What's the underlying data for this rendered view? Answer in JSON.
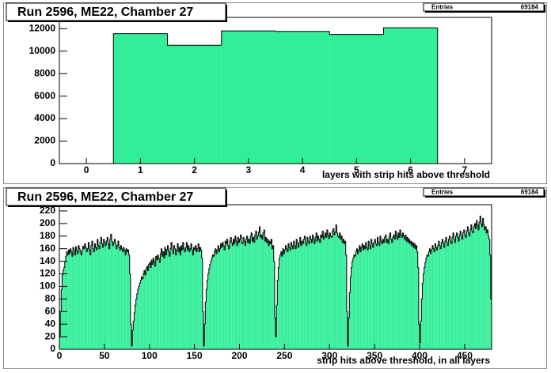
{
  "chart_data": [
    {
      "type": "histogram",
      "title": "Run 2596, ME22, Chamber 27",
      "stats_label": "Entries",
      "stats_value": 69184,
      "xlabel": "layers with strip hits above threshold",
      "color": "#33ee99",
      "bins": [
        -0.5,
        0.5,
        1.5,
        2.5,
        3.5,
        4.5,
        5.5,
        6.5,
        7.5
      ],
      "values": [
        0,
        11550,
        10520,
        11800,
        11750,
        11480,
        12080,
        0
      ],
      "xlim": [
        -0.5,
        7.5
      ],
      "ylim": [
        0,
        13000
      ],
      "xticks": [
        0,
        1,
        2,
        3,
        4,
        5,
        6,
        7
      ],
      "yticks": [
        0,
        2000,
        4000,
        6000,
        8000,
        10000,
        12000
      ]
    },
    {
      "type": "histogram",
      "title": "Run 2596, ME22, Chamber 27",
      "stats_label": "Entries",
      "stats_value": 69184,
      "xlabel": "strip hits above threshold, in all layers",
      "color": "#33ee99",
      "bins": [
        0,
        1,
        2,
        3,
        4,
        5,
        6,
        7,
        8,
        9,
        10,
        11,
        12,
        13,
        14,
        15,
        16,
        17,
        18,
        19,
        20,
        21,
        22,
        23,
        24,
        25,
        26,
        27,
        28,
        29,
        30,
        31,
        32,
        33,
        34,
        35,
        36,
        37,
        38,
        39,
        40,
        41,
        42,
        43,
        44,
        45,
        46,
        47,
        48,
        49,
        50,
        51,
        52,
        53,
        54,
        55,
        56,
        57,
        58,
        59,
        60,
        61,
        62,
        63,
        64,
        65,
        66,
        67,
        68,
        69,
        70,
        71,
        72,
        73,
        74,
        75,
        76,
        77,
        78,
        79,
        80,
        81,
        82,
        83,
        84,
        85,
        86,
        87,
        88,
        89,
        90,
        91,
        92,
        93,
        94,
        95,
        96,
        97,
        98,
        99,
        100,
        101,
        102,
        103,
        104,
        105,
        106,
        107,
        108,
        109,
        110,
        111,
        112,
        113,
        114,
        115,
        116,
        117,
        118,
        119,
        120,
        121,
        122,
        123,
        124,
        125,
        126,
        127,
        128,
        129,
        130,
        131,
        132,
        133,
        134,
        135,
        136,
        137,
        138,
        139,
        140,
        141,
        142,
        143,
        144,
        145,
        146,
        147,
        148,
        149,
        150,
        151,
        152,
        153,
        154,
        155,
        156,
        157,
        158,
        159,
        160,
        161,
        162,
        163,
        164,
        165,
        166,
        167,
        168,
        169,
        170,
        171,
        172,
        173,
        174,
        175,
        176,
        177,
        178,
        179,
        180,
        181,
        182,
        183,
        184,
        185,
        186,
        187,
        188,
        189,
        190,
        191,
        192,
        193,
        194,
        195,
        196,
        197,
        198,
        199,
        200,
        201,
        202,
        203,
        204,
        205,
        206,
        207,
        208,
        209,
        210,
        211,
        212,
        213,
        214,
        215,
        216,
        217,
        218,
        219,
        220,
        221,
        222,
        223,
        224,
        225,
        226,
        227,
        228,
        229,
        230,
        231,
        232,
        233,
        234,
        235,
        236,
        237,
        238,
        239,
        240,
        241,
        242,
        243,
        244,
        245,
        246,
        247,
        248,
        249,
        250,
        251,
        252,
        253,
        254,
        255,
        256,
        257,
        258,
        259,
        260,
        261,
        262,
        263,
        264,
        265,
        266,
        267,
        268,
        269,
        270,
        271,
        272,
        273,
        274,
        275,
        276,
        277,
        278,
        279,
        280,
        281,
        282,
        283,
        284,
        285,
        286,
        287,
        288,
        289,
        290,
        291,
        292,
        293,
        294,
        295,
        296,
        297,
        298,
        299,
        300,
        301,
        302,
        303,
        304,
        305,
        306,
        307,
        308,
        309,
        310,
        311,
        312,
        313,
        314,
        315,
        316,
        317,
        318,
        319,
        320,
        321,
        322,
        323,
        324,
        325,
        326,
        327,
        328,
        329,
        330,
        331,
        332,
        333,
        334,
        335,
        336,
        337,
        338,
        339,
        340,
        341,
        342,
        343,
        344,
        345,
        346,
        347,
        348,
        349,
        350,
        351,
        352,
        353,
        354,
        355,
        356,
        357,
        358,
        359,
        360,
        361,
        362,
        363,
        364,
        365,
        366,
        367,
        368,
        369,
        370,
        371,
        372,
        373,
        374,
        375,
        376,
        377,
        378,
        379,
        380,
        381,
        382,
        383,
        384,
        385,
        386,
        387,
        388,
        389,
        390,
        391,
        392,
        393,
        394,
        395,
        396,
        397,
        398,
        399,
        400,
        401,
        402,
        403,
        404,
        405,
        406,
        407,
        408,
        409,
        410,
        411,
        412,
        413,
        414,
        415,
        416,
        417,
        418,
        419,
        420,
        421,
        422,
        423,
        424,
        425,
        426,
        427,
        428,
        429,
        430,
        431,
        432,
        433,
        434,
        435,
        436,
        437,
        438,
        439,
        440,
        441,
        442,
        443,
        444,
        445,
        446,
        447,
        448,
        449,
        450,
        451,
        452,
        453,
        454,
        455,
        456,
        457,
        458,
        459,
        460,
        461,
        462,
        463,
        464,
        465,
        466,
        467,
        468,
        469,
        470,
        471,
        472,
        473,
        474,
        475,
        476,
        477,
        478,
        479,
        480
      ],
      "values": [
        20,
        60,
        95,
        118,
        125,
        130,
        140,
        148,
        155,
        150,
        158,
        152,
        160,
        155,
        148,
        162,
        158,
        150,
        163,
        157,
        152,
        165,
        160,
        155,
        150,
        158,
        164,
        160,
        168,
        162,
        155,
        160,
        170,
        158,
        150,
        165,
        172,
        160,
        155,
        168,
        162,
        158,
        175,
        165,
        160,
        170,
        178,
        168,
        162,
        175,
        170,
        165,
        172,
        178,
        168,
        160,
        175,
        183,
        172,
        165,
        170,
        175,
        168,
        160,
        165,
        172,
        162,
        158,
        165,
        160,
        155,
        162,
        158,
        150,
        160,
        155,
        158,
        150,
        120,
        40,
        5,
        30,
        45,
        58,
        70,
        80,
        88,
        95,
        100,
        105,
        110,
        115,
        112,
        120,
        125,
        118,
        128,
        132,
        125,
        135,
        138,
        130,
        142,
        135,
        145,
        140,
        132,
        148,
        142,
        150,
        145,
        138,
        152,
        160,
        148,
        155,
        145,
        162,
        150,
        158,
        165,
        155,
        148,
        160,
        170,
        158,
        152,
        165,
        160,
        150,
        158,
        168,
        155,
        162,
        150,
        165,
        158,
        170,
        160,
        155,
        162,
        170,
        158,
        165,
        155,
        160,
        168,
        158,
        150,
        162,
        158,
        165,
        155,
        160,
        168,
        155,
        162,
        158,
        145,
        60,
        5,
        40,
        75,
        95,
        110,
        120,
        128,
        135,
        140,
        145,
        150,
        148,
        155,
        160,
        152,
        158,
        165,
        155,
        160,
        168,
        162,
        170,
        165,
        158,
        172,
        168,
        175,
        165,
        160,
        172,
        178,
        170,
        165,
        175,
        168,
        180,
        172,
        165,
        178,
        170,
        175,
        182,
        170,
        168,
        178,
        172,
        165,
        175,
        180,
        170,
        175,
        168,
        180,
        185,
        172,
        178,
        170,
        182,
        188,
        175,
        180,
        186,
        195,
        178,
        182,
        175,
        185,
        190,
        172,
        178,
        170,
        175,
        165,
        172,
        168,
        175,
        160,
        165,
        140,
        50,
        20,
        70,
        110,
        130,
        145,
        150,
        155,
        148,
        160,
        152,
        158,
        165,
        160,
        155,
        168,
        162,
        158,
        170,
        165,
        160,
        172,
        165,
        160,
        175,
        168,
        162,
        170,
        178,
        165,
        172,
        168,
        175,
        180,
        170,
        165,
        178,
        172,
        168,
        180,
        175,
        170,
        182,
        175,
        168,
        178,
        185,
        172,
        180,
        175,
        170,
        182,
        178,
        188,
        175,
        180,
        185,
        178,
        190,
        182,
        176,
        185,
        180,
        178,
        188,
        192,
        182,
        186,
        198,
        185,
        180,
        178,
        185,
        175,
        180,
        170,
        175,
        168,
        172,
        150,
        60,
        5,
        50,
        90,
        115,
        130,
        140,
        145,
        150,
        148,
        155,
        160,
        152,
        158,
        165,
        155,
        162,
        168,
        158,
        165,
        160,
        170,
        162,
        158,
        172,
        165,
        160,
        175,
        168,
        162,
        170,
        175,
        168,
        165,
        178,
        170,
        165,
        180,
        172,
        168,
        175,
        170,
        178,
        182,
        170,
        175,
        168,
        180,
        185,
        175,
        170,
        178,
        182,
        175,
        188,
        180,
        175,
        185,
        178,
        190,
        182,
        178,
        185,
        180,
        175,
        182,
        172,
        178,
        170,
        175,
        168,
        172,
        165,
        170,
        162,
        168,
        160,
        165,
        155,
        130,
        40,
        10,
        45,
        80,
        105,
        120,
        130,
        138,
        145,
        150,
        148,
        155,
        160,
        152,
        158,
        165,
        160,
        155,
        168,
        162,
        158,
        165,
        172,
        165,
        160,
        170,
        175,
        168,
        162,
        172,
        178,
        170,
        165,
        175,
        180,
        172,
        168,
        178,
        185,
        175,
        170,
        180,
        185,
        178,
        172,
        182,
        188,
        180,
        175,
        185,
        190,
        182,
        178,
        188,
        195,
        185,
        180,
        190,
        198,
        188,
        185,
        195,
        200,
        192,
        205,
        198,
        190,
        202,
        212,
        200,
        195,
        208,
        198,
        190,
        195,
        185,
        190,
        180,
        175,
        150,
        80
      ],
      "xlim": [
        0,
        480
      ],
      "ylim": [
        0,
        230
      ],
      "xticks": [
        0,
        50,
        100,
        150,
        200,
        250,
        300,
        350,
        400,
        450
      ],
      "yticks": [
        0,
        20,
        40,
        60,
        80,
        100,
        120,
        140,
        160,
        180,
        200,
        220
      ]
    }
  ]
}
